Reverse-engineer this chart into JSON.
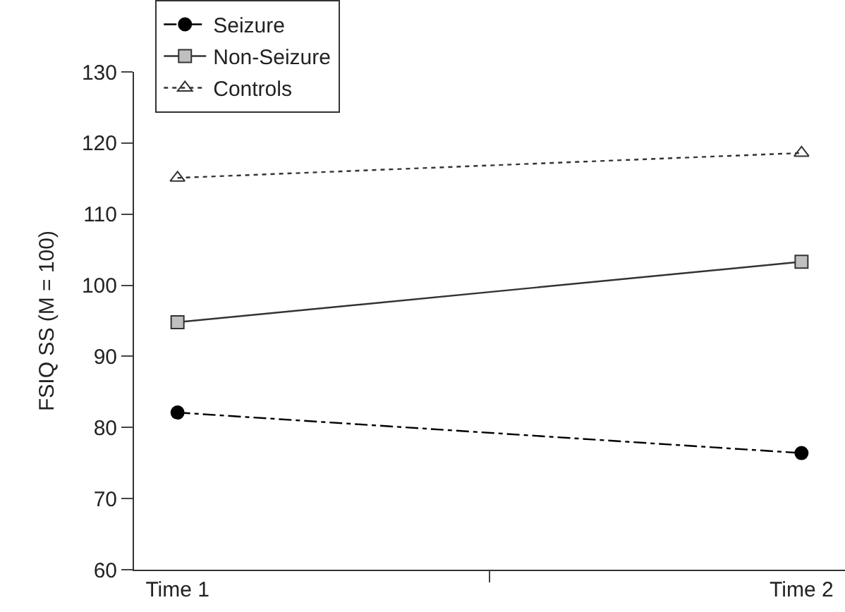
{
  "chart_data": {
    "type": "line",
    "ylabel": "FSIQ SS (M = 100)",
    "categories": [
      "Time 1",
      "Time 2"
    ],
    "series": [
      {
        "name": "Seizure",
        "color": "#000000",
        "values": [
          82.1,
          76.4
        ],
        "marker": "circle",
        "line_style": "dashdot"
      },
      {
        "name": "Non-Seizure",
        "color": "#333333",
        "values": [
          94.8,
          103.3
        ],
        "marker": "square",
        "line_style": "solid"
      },
      {
        "name": "Controls",
        "color": "#333333",
        "values": [
          115.1,
          118.6
        ],
        "marker": "triangle",
        "line_style": "dotted"
      }
    ],
    "ylim": [
      60,
      130
    ],
    "yticks": [
      60,
      70,
      80,
      90,
      100,
      110,
      120,
      130
    ],
    "legend": "top left"
  }
}
